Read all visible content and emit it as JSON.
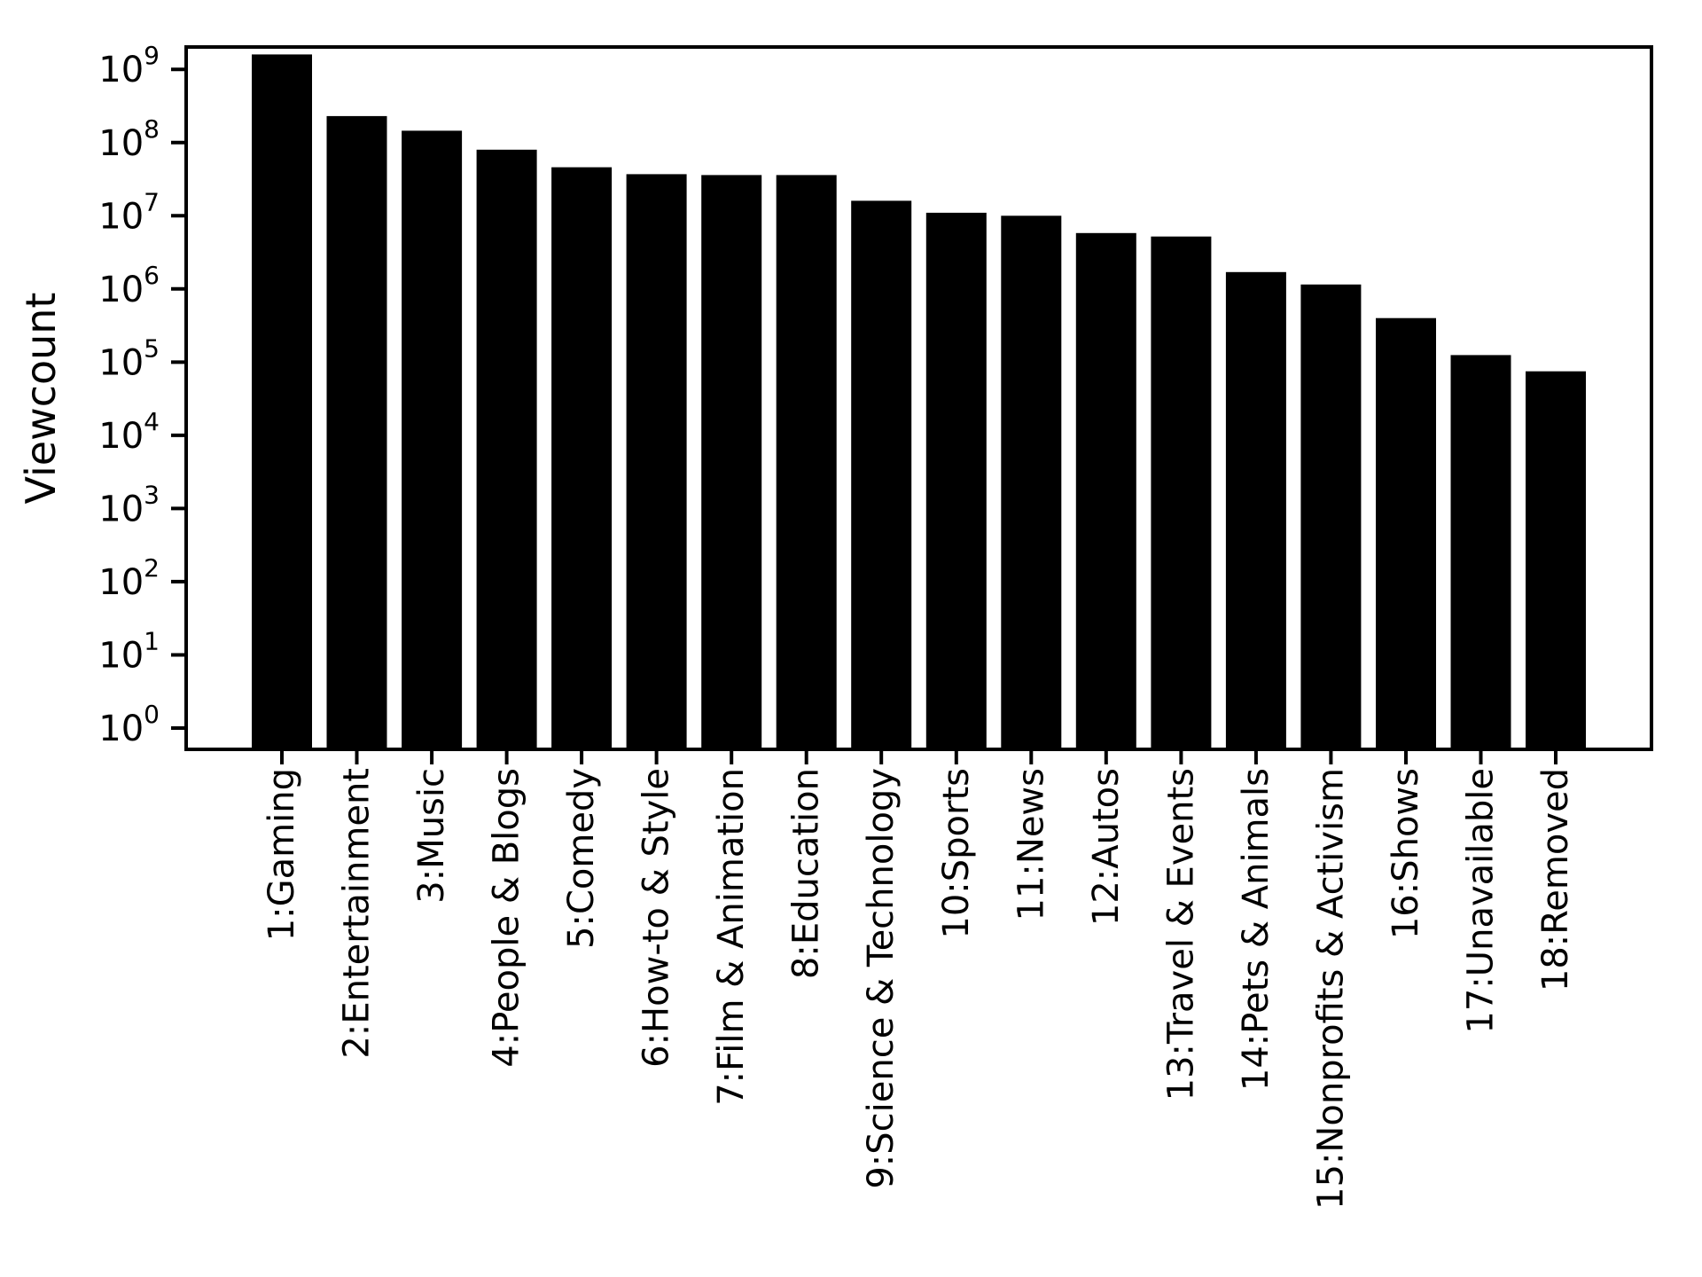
{
  "chart_data": {
    "type": "bar",
    "title": "",
    "xlabel": "",
    "ylabel": "Viewcount",
    "yscale": "log",
    "ylim": [
      0.5,
      2100000000
    ],
    "grid": false,
    "legend": null,
    "bar_color": "#000000",
    "axis_color": "#000000",
    "background_color": "#ffffff",
    "ytick_base": "10",
    "ytick_exponents": [
      0,
      1,
      2,
      3,
      4,
      5,
      6,
      7,
      8,
      9
    ],
    "categories": [
      "1:Gaming",
      "2:Entertainment",
      "3:Music",
      "4:People & Blogs",
      "5:Comedy",
      "6:How-to & Style",
      "7:Film & Animation",
      "8:Education",
      "9:Science & Technology",
      "10:Sports",
      "11:News",
      "12:Autos",
      "13:Travel & Events",
      "14:Pets & Animals",
      "15:Nonprofits & Activism",
      "16:Shows",
      "17:Unavailable",
      "18:Removed"
    ],
    "values": [
      1600000000,
      230000000,
      145000000,
      80000000,
      46000000,
      37000000,
      36000000,
      36000000,
      16000000,
      11000000,
      10000000,
      5800000,
      5200000,
      1700000,
      1150000,
      400000,
      125000,
      75000
    ]
  }
}
